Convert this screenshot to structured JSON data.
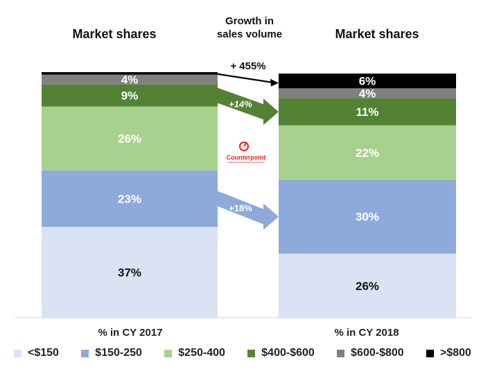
{
  "chart_data": {
    "type": "bar",
    "stacked": true,
    "normalized": true,
    "categories": [
      "% in CY 2017",
      "% in CY 2018"
    ],
    "column_titles": [
      "Market shares",
      "Market shares"
    ],
    "center_title": "Growth in\nsales volume",
    "series": [
      {
        "name": "<$150",
        "values": [
          37,
          26
        ],
        "color": "#dae3f3",
        "label_color": "#111111"
      },
      {
        "name": "$150-250",
        "values": [
          23,
          30
        ],
        "color": "#8eaadb",
        "label_color": "#ffffff"
      },
      {
        "name": "$250-400",
        "values": [
          26,
          22
        ],
        "color": "#a9d18e",
        "label_color": "#ffffff"
      },
      {
        "name": "$400-$600",
        "values": [
          9,
          11
        ],
        "color": "#548235",
        "label_color": "#ffffff"
      },
      {
        "name": "$600-$800",
        "values": [
          4,
          4
        ],
        "color": "#808080",
        "label_color": "#ffffff"
      },
      {
        "name": ">$800",
        "values": [
          1,
          6
        ],
        "color": "#000000",
        "label_color": "#ffffff"
      }
    ],
    "data_labels": [
      [
        "37%",
        "23%",
        "26%",
        "9%",
        "4%",
        ""
      ],
      [
        "26%",
        "30%",
        "22%",
        "11%",
        "4%",
        "6%"
      ]
    ],
    "growth_arrows": [
      {
        "label": "+ 455%",
        "series": ">$800",
        "style": "line"
      },
      {
        "label": "+14%",
        "series": "$400-$600",
        "style": "block",
        "color": "#548235"
      },
      {
        "label": "+18%",
        "series": "$150-250",
        "style": "block",
        "color": "#8eaadb"
      }
    ],
    "watermark": "Counterpoint",
    "ylim": [
      0,
      100
    ],
    "legend_position": "bottom"
  }
}
